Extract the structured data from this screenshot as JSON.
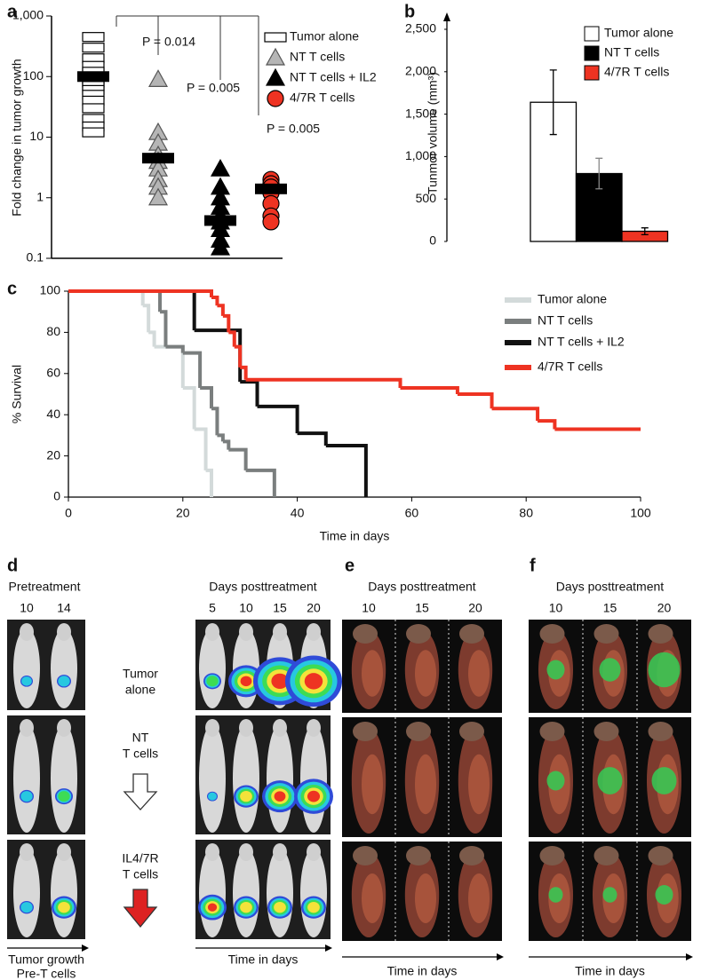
{
  "chart_data": [
    {
      "type": "dot",
      "label": "a",
      "ylabel": "Fold change in tumor growth",
      "log_scale": true,
      "ylim": [
        0.1,
        1000
      ],
      "yticks": [
        0.1,
        1,
        10,
        100,
        {
          "value": 1000,
          "label": "1,000"
        }
      ],
      "annotations": [
        "P = 0.014",
        "P = 0.005",
        "P = 0.005"
      ],
      "series": [
        {
          "name": "Tumor alone",
          "color": "#ffffff",
          "marker": "square",
          "values": [
            450,
            300,
            200,
            150,
            120,
            100,
            90,
            80,
            70,
            60,
            50,
            40,
            30,
            20,
            15,
            12
          ],
          "median": 100
        },
        {
          "name": "NT T cells",
          "color": "#b5b5b5",
          "marker": "triangle",
          "values": [
            90,
            12,
            8,
            5,
            4,
            3,
            2,
            1.5,
            1
          ],
          "median": 4.5
        },
        {
          "name": "NT T cells + IL2",
          "color": "#000000",
          "marker": "triangle",
          "values": [
            3,
            1.5,
            1,
            0.7,
            0.5,
            0.4,
            0.3,
            0.2,
            0.15
          ],
          "median": 0.42
        },
        {
          "name": "4/7R T cells",
          "color": "#ee3322",
          "marker": "circle",
          "values": [
            2,
            1.7,
            1.5,
            1.2,
            0.8,
            0.5,
            0.4
          ],
          "median": 1.4
        }
      ]
    },
    {
      "type": "bar",
      "label": "b",
      "ylabel": "Tunmor volume (mm³)",
      "ylim": [
        0,
        2500
      ],
      "yticks": [
        0,
        500,
        {
          "value": 1000,
          "label": "1,000"
        },
        {
          "value": 1500,
          "label": "1,500"
        },
        {
          "value": 2000,
          "label": "2,000"
        },
        {
          "value": 2500,
          "label": "2,500"
        }
      ],
      "series": [
        {
          "name": "Tumor alone",
          "color": "#ffffff",
          "values": [
            1640
          ],
          "errors": [
            380
          ]
        },
        {
          "name": "NT T cells",
          "color": "#000000",
          "values": [
            800
          ],
          "errors": [
            180
          ]
        },
        {
          "name": "4/7R T cells",
          "color": "#ee3322",
          "values": [
            120
          ],
          "errors": [
            40
          ]
        }
      ]
    },
    {
      "type": "step",
      "label": "c",
      "xlabel": "Time in days",
      "ylabel": "% Survival",
      "xlim": [
        0,
        100
      ],
      "xticks": [
        0,
        20,
        40,
        60,
        80,
        100
      ],
      "ylim": [
        0,
        100
      ],
      "yticks": [
        0,
        20,
        40,
        60,
        80,
        100
      ],
      "series": [
        {
          "name": "Tumor alone",
          "color": "#d3dada",
          "x": [
            0,
            13,
            14,
            15,
            20,
            22,
            24,
            25
          ],
          "values": [
            100,
            93,
            80,
            73,
            53,
            33,
            13,
            0
          ]
        },
        {
          "name": "NT T cells",
          "color": "#7a7e7e",
          "x": [
            0,
            16,
            17,
            20,
            23,
            25,
            26,
            27,
            28,
            31,
            36
          ],
          "values": [
            100,
            90,
            73,
            70,
            53,
            43,
            30,
            27,
            23,
            13,
            0
          ]
        },
        {
          "name": "NT T cells + IL2",
          "color": "#111111",
          "x": [
            0,
            22,
            30,
            33,
            40,
            45,
            52
          ],
          "values": [
            100,
            81,
            56,
            44,
            31,
            25,
            0
          ]
        },
        {
          "name": "4/7R T cells",
          "color": "#ee3322",
          "x": [
            0,
            25,
            26,
            27,
            28,
            29,
            30,
            31,
            58,
            68,
            74,
            82,
            85,
            100
          ],
          "values": [
            100,
            97,
            93,
            88,
            80,
            73,
            63,
            57,
            53,
            50,
            43,
            37,
            33,
            33
          ]
        }
      ]
    }
  ],
  "panel_d": {
    "label": "d",
    "pre_title": "Pretreatment",
    "pre_days": [
      10,
      14
    ],
    "post_title": "Days posttreatment",
    "post_days": [
      5,
      10,
      15,
      20
    ],
    "groups": [
      [
        "Tumor",
        "alone"
      ],
      [
        "NT",
        "T cells"
      ],
      [
        "IL4/7R",
        "T cells"
      ]
    ],
    "left_axis": [
      "Tumor growth",
      "Pre-T cells"
    ],
    "right_axis": "Time in days"
  },
  "panel_e": {
    "label": "e",
    "title": "Days posttreatment",
    "days": [
      10,
      15,
      20
    ],
    "axis": "Time in days"
  },
  "panel_f": {
    "label": "f",
    "title": "Days posttreatment",
    "days": [
      10,
      15,
      20
    ],
    "axis": "Time in days"
  }
}
